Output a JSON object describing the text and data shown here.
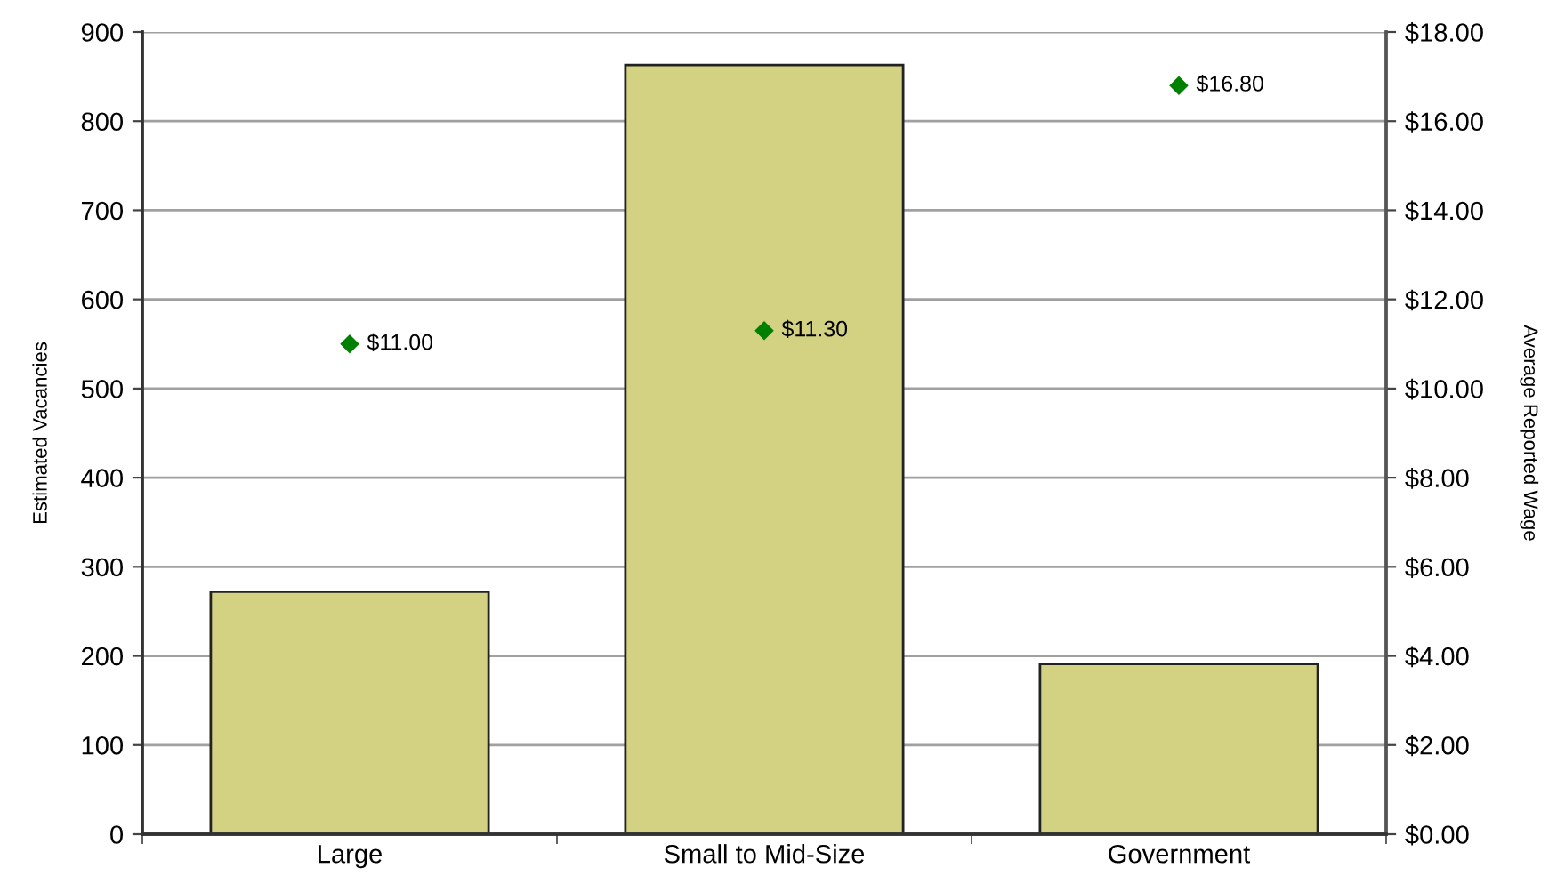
{
  "chart_data": {
    "type": "bar",
    "categories": [
      "Large",
      "Small to Mid-Size",
      "Government"
    ],
    "ylabel": "Estimated Vacancies",
    "y2label": "Average Reported Wage",
    "ylim": [
      0,
      900
    ],
    "yticks": [
      0,
      100,
      200,
      300,
      400,
      500,
      600,
      700,
      800,
      900
    ],
    "y2lim": [
      0,
      18
    ],
    "y2ticks": [
      {
        "value": 0,
        "label": "$0.00"
      },
      {
        "value": 2,
        "label": "$2.00"
      },
      {
        "value": 4,
        "label": "$4.00"
      },
      {
        "value": 6,
        "label": "$6.00"
      },
      {
        "value": 8,
        "label": "$8.00"
      },
      {
        "value": 10,
        "label": "$10.00"
      },
      {
        "value": 12,
        "label": "$12.00"
      },
      {
        "value": 14,
        "label": "$14.00"
      },
      {
        "value": 16,
        "label": "$16.00"
      },
      {
        "value": 18,
        "label": "$18.00"
      }
    ],
    "grid": "y",
    "marker": "diamond",
    "series": [
      {
        "color": "#d2d282",
        "values": [
          272,
          863,
          191
        ]
      },
      {
        "type": "scatter",
        "axis": "y2",
        "color": "#008000",
        "values": [
          11.0,
          11.3,
          16.8
        ],
        "value_labels": [
          "$11.00",
          "$11.30",
          "$16.80"
        ]
      }
    ]
  }
}
